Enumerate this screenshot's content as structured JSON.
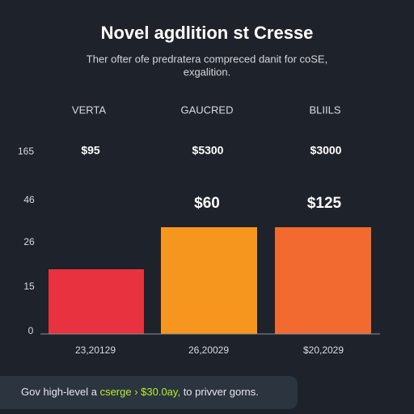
{
  "header": {
    "title": "Novel agdlition st Cresse",
    "subtitle": [
      "Ther ofter ofe predratera compreced danit for coSE,",
      "exgalition."
    ]
  },
  "axis": {
    "labels": [
      "165",
      "46",
      "26",
      "15",
      "0"
    ]
  },
  "columns": [
    {
      "header": "VERTA",
      "price": "$95",
      "date": "23,20129"
    },
    {
      "header": "GAUCRED",
      "price": "$5300",
      "value_label": "$60",
      "date": "26,20029"
    },
    {
      "header": "BLIILS",
      "price": "$3000",
      "value_label": "$125",
      "date": "$20,2029"
    }
  ],
  "footer": {
    "before": "Gov high-level a",
    "highlight": "cserge › $30.0ay,",
    "after": "to privver gorns."
  }
}
